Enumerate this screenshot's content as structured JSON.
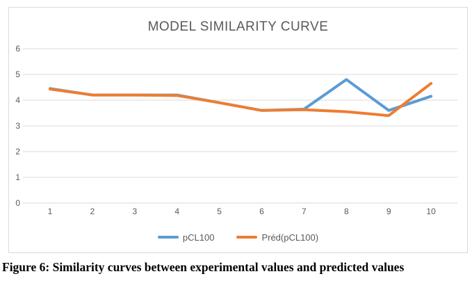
{
  "figure": {
    "caption": "Figure 6: Similarity curves between experimental values and predicted values"
  },
  "chart_data": {
    "type": "line",
    "title": "MODEL SIMILARITY CURVE",
    "categories": [
      "1",
      "2",
      "3",
      "4",
      "5",
      "6",
      "7",
      "8",
      "9",
      "10"
    ],
    "series": [
      {
        "name": "pCL100",
        "color": "#5B9BD5",
        "values": [
          4.45,
          4.2,
          4.2,
          4.2,
          3.9,
          3.6,
          3.65,
          4.8,
          3.6,
          4.15
        ]
      },
      {
        "name": "Préd(pCL100)",
        "color": "#ED7D31",
        "values": [
          4.43,
          4.2,
          4.2,
          4.18,
          3.9,
          3.6,
          3.63,
          3.55,
          3.4,
          4.65
        ]
      }
    ],
    "xlabel": "",
    "ylabel": "",
    "ylim": [
      0,
      6
    ],
    "ytick_step": 1,
    "grid": "horizontal",
    "legend_position": "bottom",
    "styles": {
      "title_color": "#595959",
      "axis_text_color": "#595959",
      "grid_color": "#D9D9D9",
      "frame_border_color": "#D9D9D9",
      "line_width": 4
    }
  }
}
